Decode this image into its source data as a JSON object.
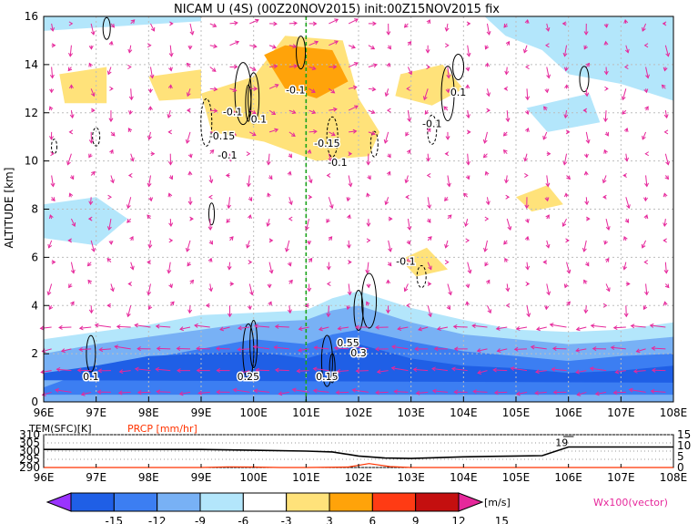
{
  "chart_data": [
    {
      "type": "heatmap",
      "title": "NICAM U (4S) (00Z20NOV2015) init:00Z15NOV2015 fix",
      "xlabel": "",
      "ylabel": "ALTITUDE [km]",
      "xlim": [
        96,
        108
      ],
      "ylim": [
        0,
        16
      ],
      "x_ticks": [
        "96E",
        "97E",
        "98E",
        "99E",
        "100E",
        "101E",
        "102E",
        "103E",
        "104E",
        "105E",
        "106E",
        "107E",
        "108E"
      ],
      "y_ticks": [
        "0",
        "2",
        "4",
        "6",
        "8",
        "10",
        "12",
        "14",
        "16"
      ],
      "marker_line_x": 101,
      "contour_labels": [
        {
          "text": "-0.1",
          "x": 100.8,
          "y": 12.8
        },
        {
          "text": "-0.1",
          "x": 99.6,
          "y": 11.9
        },
        {
          "text": "0.1",
          "x": 100.1,
          "y": 11.6
        },
        {
          "text": "-0.15",
          "x": 99.4,
          "y": 10.9
        },
        {
          "text": "-0.1",
          "x": 99.5,
          "y": 10.1
        },
        {
          "text": "-0.15",
          "x": 101.4,
          "y": 10.6
        },
        {
          "text": "-0.1",
          "x": 101.6,
          "y": 9.8
        },
        {
          "text": "0.1",
          "x": 103.9,
          "y": 12.7
        },
        {
          "text": "-0.1",
          "x": 103.4,
          "y": 11.4
        },
        {
          "text": "-0.1",
          "x": 102.9,
          "y": 5.7
        },
        {
          "text": "0.1",
          "x": 96.9,
          "y": 0.9
        },
        {
          "text": "0.25",
          "x": 99.9,
          "y": 0.9
        },
        {
          "text": "0.15",
          "x": 101.4,
          "y": 0.9
        },
        {
          "text": "0.55",
          "x": 101.8,
          "y": 2.3
        },
        {
          "text": "0.3",
          "x": 102.0,
          "y": 1.9
        }
      ]
    },
    {
      "type": "line",
      "left_axis_label": "TEM(SFC)[K]",
      "right_axis_label": "PRCP [mm/hr]",
      "xlim": [
        96,
        108
      ],
      "left_ticks": [
        "310",
        "305",
        "300",
        "295",
        "290"
      ],
      "left_ylim": [
        290,
        310
      ],
      "right_ticks": [
        "15",
        "10",
        "5",
        "0"
      ],
      "right_ylim": [
        0,
        15
      ],
      "annotation": "19",
      "series": [
        {
          "name": "TEM(SFC)[K]",
          "color": "#000000",
          "x": [
            96,
            97,
            98,
            99,
            100,
            101,
            101.5,
            102,
            102.5,
            103,
            103.5,
            104,
            104.5,
            105,
            105.5,
            106,
            106.5,
            107,
            108
          ],
          "values": [
            301,
            301,
            301,
            301,
            300.5,
            300,
            299.5,
            297,
            295.8,
            295.5,
            296,
            296.5,
            296.8,
            297,
            297.2,
            302.5,
            302.5,
            302.5,
            302.5
          ]
        },
        {
          "name": "PRCP [mm/hr]",
          "color": "#ff3300",
          "x": [
            96,
            99,
            99.5,
            100,
            100.5,
            101,
            101.8,
            102.2,
            102.6,
            103,
            104,
            105,
            106,
            108
          ],
          "values": [
            0,
            0,
            0.3,
            0.2,
            0,
            0,
            0.2,
            1.8,
            0.4,
            0,
            0,
            0,
            0,
            0
          ]
        }
      ]
    }
  ],
  "colorbar": {
    "ticks": [
      "-15",
      "-12",
      "-9",
      "-6",
      "-3",
      "3",
      "6",
      "9",
      "12",
      "15"
    ],
    "colors": [
      "#9a33ff",
      "#1f5fe6",
      "#3c7ef2",
      "#78b1f5",
      "#b3e6fb",
      "#ffffff",
      "#ffe27a",
      "#ffa30a",
      "#ff3b14",
      "#c40f0f",
      "#e6289b"
    ],
    "unit": "[m/s]",
    "vector_label": "Wx100(vector)"
  }
}
